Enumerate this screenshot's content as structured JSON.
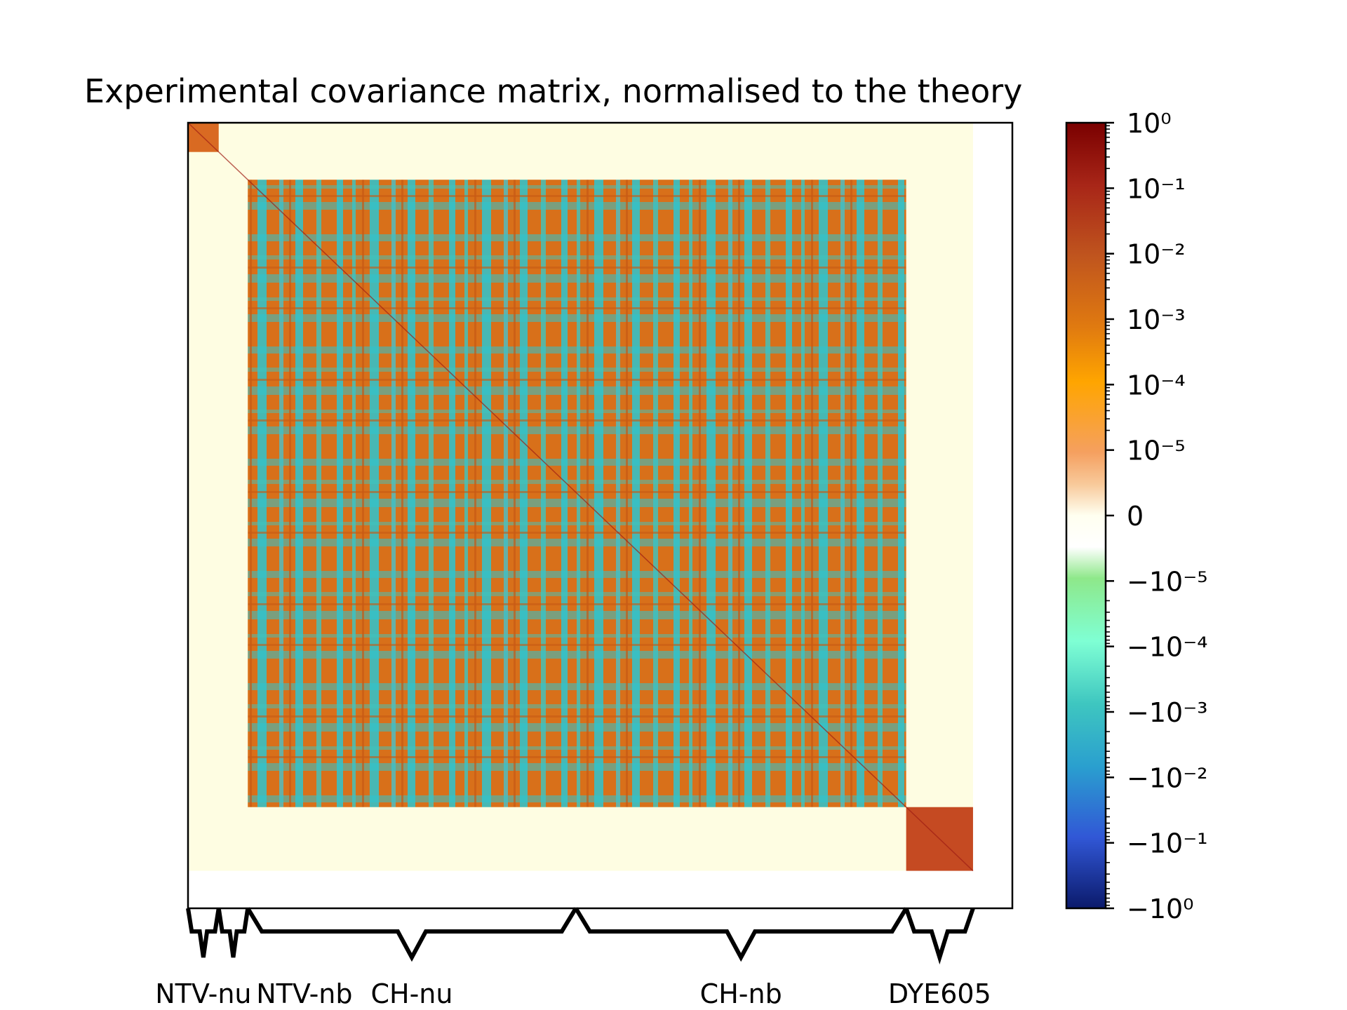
{
  "chart_data": {
    "type": "heatmap",
    "title": "Experimental covariance matrix, normalised to the theory",
    "xlabel": "",
    "ylabel": "",
    "datasets": [
      {
        "name": "NTV-nu",
        "start": 0,
        "end": 39
      },
      {
        "name": "NTV-nb",
        "start": 39,
        "end": 76
      },
      {
        "name": "CH-nu",
        "start": 76,
        "end": 493
      },
      {
        "name": "CH-nb",
        "start": 493,
        "end": 913
      },
      {
        "name": "DYE605",
        "start": 913,
        "end": 998
      }
    ],
    "matrix_size": 1048,
    "covariance_blocks": [
      {
        "rows": "NTV-nu",
        "cols": "NTV-nu",
        "sign": "positive",
        "magnitude_approx": 0.005
      },
      {
        "rows": "NTV-nb",
        "cols": "NTV-nb",
        "sign": "zero",
        "magnitude_approx": 0
      },
      {
        "rows": "CH-nu+CH-nb",
        "cols": "CH-nu+CH-nb",
        "sign": "mixed",
        "magnitude_approx": 0.001
      },
      {
        "rows": "DYE605",
        "cols": "DYE605",
        "sign": "positive",
        "magnitude_approx": 0.01
      },
      {
        "rows": "off-diagonal",
        "cols": "between datasets",
        "sign": "zero",
        "magnitude_approx": 0
      }
    ],
    "colorbar": {
      "scale": "symlog",
      "range": [
        -1,
        1
      ],
      "linthresh": 1e-05,
      "colormap": "diverging",
      "colors": [
        "#0b1a6b",
        "#3157d6",
        "#2a9fcf",
        "#3ec6c0",
        "#7fffd4",
        "#8ee88a",
        "#ffffff",
        "#fffff0",
        "#f8c99a",
        "#f5a060",
        "#ffa500",
        "#e07a10",
        "#c0551e",
        "#a82618",
        "#7a0000"
      ],
      "tick_labels": [
        "10⁰",
        "10⁻¹",
        "10⁻²",
        "10⁻³",
        "10⁻⁴",
        "10⁻⁵",
        "0",
        "−10⁻⁵",
        "−10⁻⁴",
        "−10⁻³",
        "−10⁻²",
        "−10⁻¹",
        "−10⁰"
      ]
    },
    "grid": false,
    "legend": "none"
  }
}
